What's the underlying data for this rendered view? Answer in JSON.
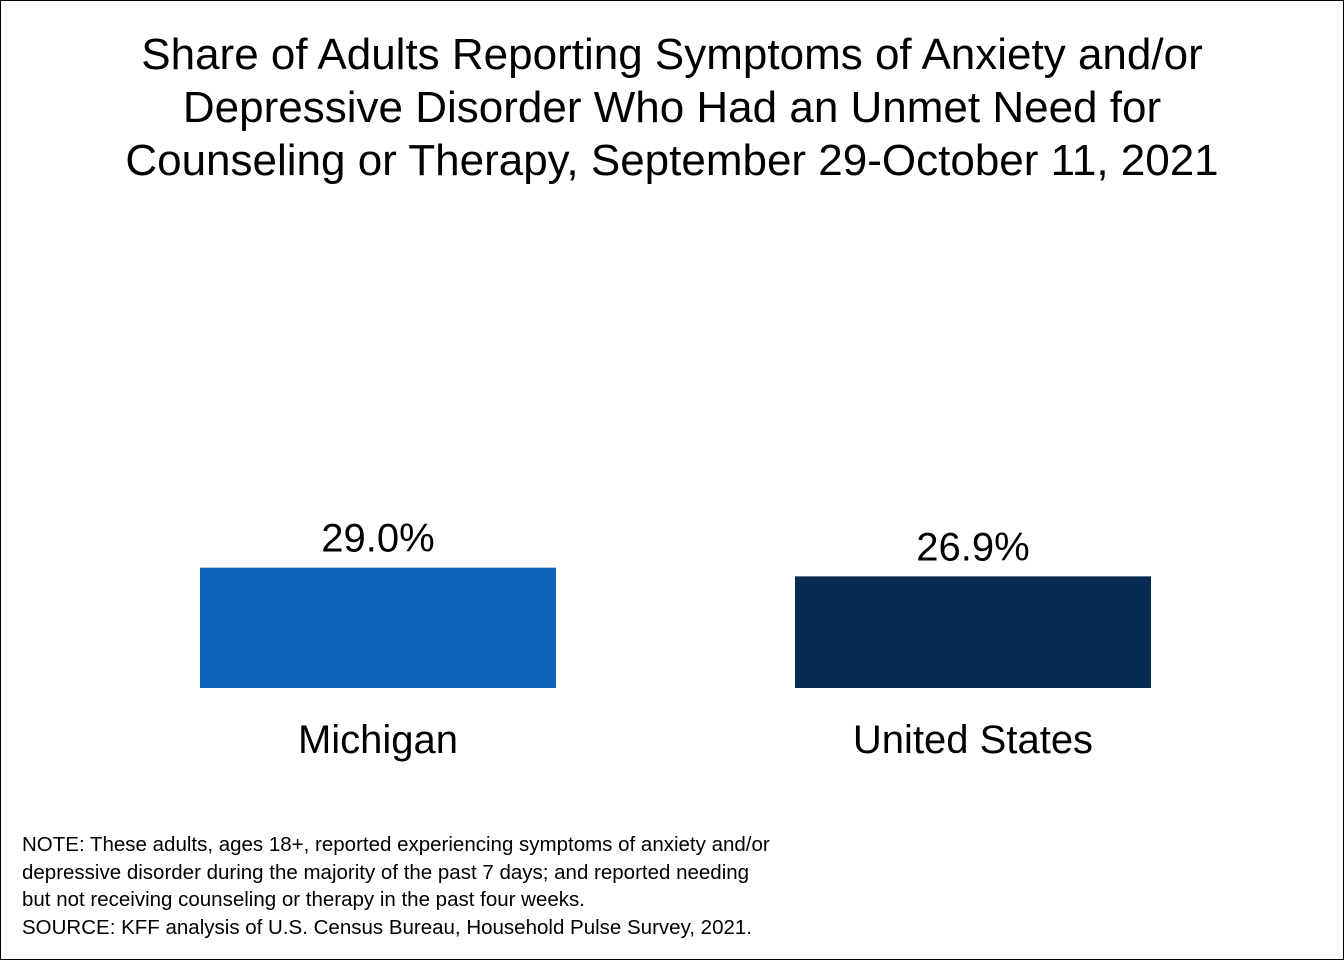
{
  "chart_data": {
    "type": "bar",
    "title": "Share of Adults Reporting Symptoms of Anxiety and/or Depressive Disorder Who Had an Unmet Need for Counseling or Therapy, September 29-October 11, 2021",
    "title_lines": [
      "Share of Adults Reporting Symptoms of Anxiety and/or",
      "Depressive Disorder Who Had an Unmet Need for",
      "Counseling or Therapy, September 29-October 11, 2021"
    ],
    "categories": [
      "Michigan",
      "United States"
    ],
    "values": [
      29.0,
      26.9
    ],
    "data_labels": [
      "29.0%",
      "26.9%"
    ],
    "colors": [
      "#0e62bb",
      "#082b52"
    ],
    "xlabel": "",
    "ylabel": "",
    "grid": false,
    "legend": "none"
  },
  "notes": {
    "lines": [
      "NOTE: These adults, ages 18+, reported experiencing symptoms of anxiety and/or",
      "depressive disorder during the majority of the past 7 days; and reported needing",
      "but not receiving counseling or therapy in the past four weeks.",
      "SOURCE: KFF analysis of U.S. Census Bureau, Household Pulse Survey, 2021."
    ]
  }
}
